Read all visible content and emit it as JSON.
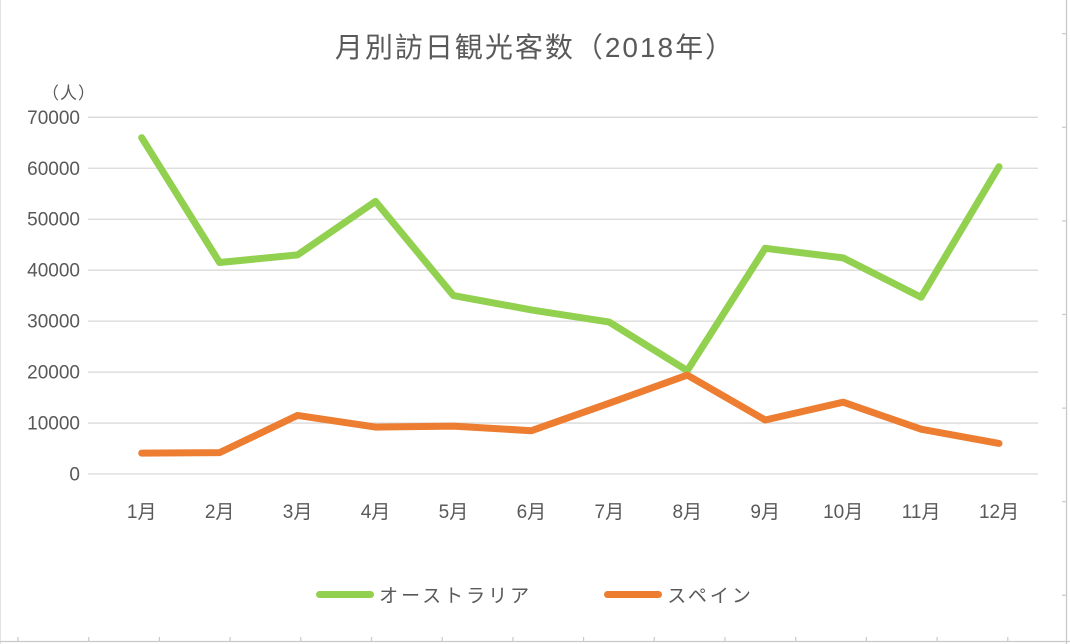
{
  "chart_data": {
    "type": "line",
    "title": "月別訪日観光客数（2018年）",
    "y_axis_unit": "（人）",
    "categories": [
      "1月",
      "2月",
      "3月",
      "4月",
      "5月",
      "6月",
      "7月",
      "8月",
      "9月",
      "10月",
      "11月",
      "12月"
    ],
    "series": [
      {
        "name": "オーストラリア",
        "color": "#92D050",
        "values": [
          66000,
          41500,
          43000,
          53500,
          35000,
          32200,
          29800,
          20300,
          44300,
          42400,
          34700,
          60300
        ]
      },
      {
        "name": "スペイン",
        "color": "#ED7D31",
        "values": [
          4100,
          4200,
          11500,
          9200,
          9400,
          8500,
          13900,
          19400,
          10600,
          14100,
          8800,
          6000
        ]
      }
    ],
    "ylim": [
      0,
      70000
    ],
    "y_ticks": [
      0,
      10000,
      20000,
      30000,
      40000,
      50000,
      60000,
      70000
    ],
    "y_tick_labels": [
      "0",
      "10000",
      "20000",
      "30000",
      "40000",
      "50000",
      "60000",
      "70000"
    ],
    "xlabel": "",
    "ylabel": "（人）",
    "grid": true,
    "legend_position": "bottom"
  },
  "colors": {
    "text": "#595959",
    "gridline": "#D9D9D9",
    "sheet_edge": "#C9C9C9"
  }
}
